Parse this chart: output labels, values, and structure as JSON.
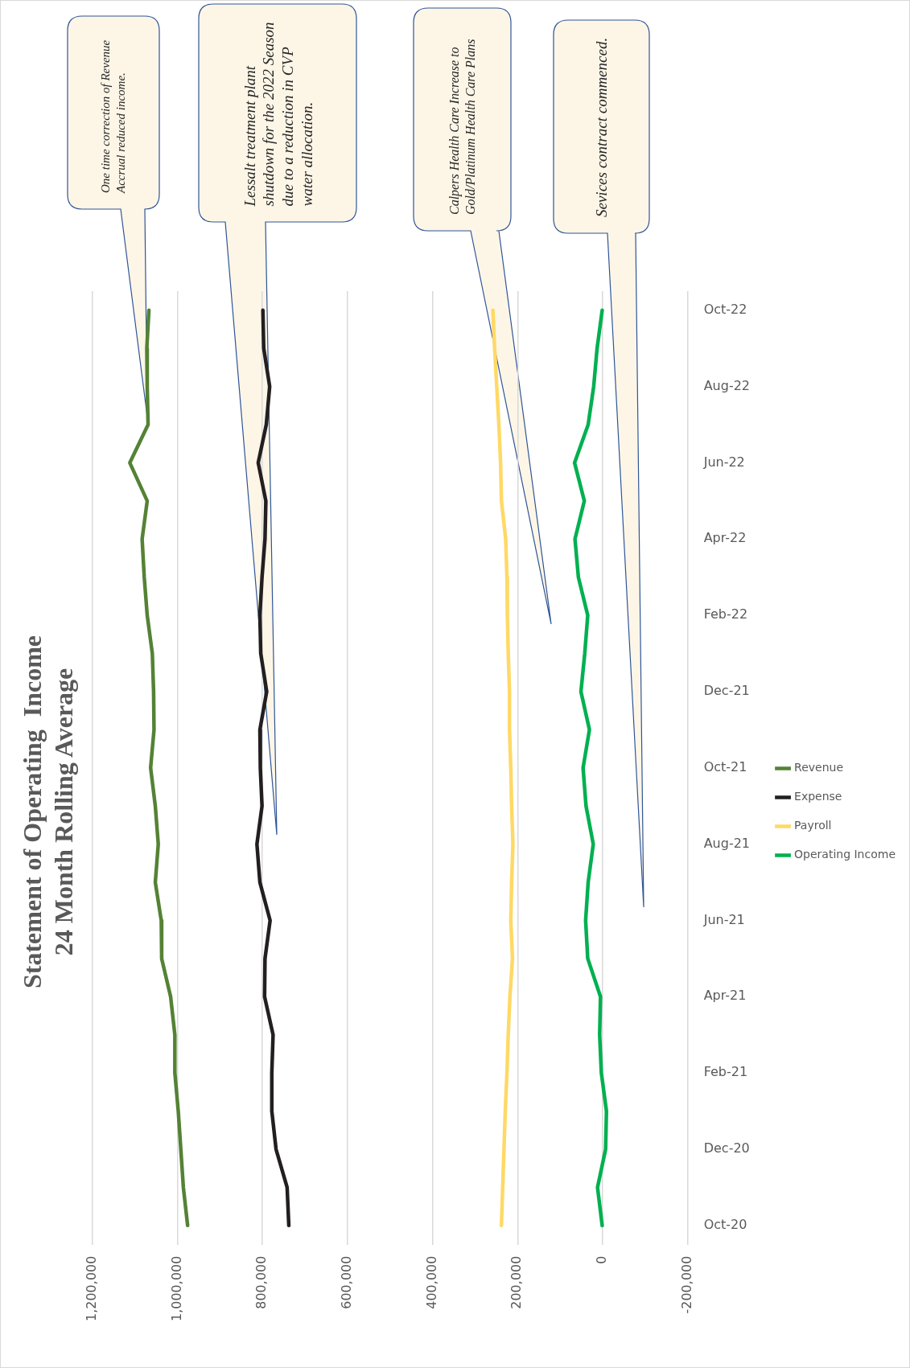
{
  "chart_data": {
    "type": "line",
    "orientation": "horizontal",
    "title": [
      "Statement of Operating  Income",
      "24 Month Rolling Average"
    ],
    "categories": [
      "Oct-22",
      null,
      "Aug-22",
      null,
      "Jun-22",
      null,
      "Apr-22",
      null,
      "Feb-22",
      null,
      "Dec-21",
      null,
      "Oct-21",
      null,
      "Aug-21",
      null,
      "Jun-21",
      null,
      "Apr-21",
      null,
      "Feb-21",
      null,
      "Dec-20",
      null,
      "Oct-20"
    ],
    "series": [
      {
        "name": "Revenue",
        "color": "#548235",
        "values": [
          1067000,
          1072000,
          1071000,
          1069000,
          1112000,
          1071000,
          1083000,
          1078000,
          1071000,
          1059000,
          1056000,
          1055000,
          1063000,
          1052000,
          1045000,
          1052000,
          1038000,
          1037000,
          1016000,
          1006000,
          1006000,
          998000,
          992000,
          986000,
          976000
        ]
      },
      {
        "name": "Expense",
        "color": "#231f20",
        "values": [
          799000,
          797000,
          783000,
          791000,
          810000,
          792000,
          794000,
          801000,
          806000,
          804000,
          790000,
          806000,
          805000,
          801000,
          813000,
          806000,
          782000,
          794000,
          795000,
          775000,
          778000,
          778000,
          768000,
          742000,
          738000
        ]
      },
      {
        "name": "Payroll",
        "color": "#ffd966",
        "values": [
          258000,
          254000,
          249000,
          244000,
          240000,
          238000,
          228000,
          225000,
          224000,
          222000,
          219000,
          219000,
          216000,
          214000,
          211000,
          214000,
          216000,
          212000,
          218000,
          222000,
          225000,
          229000,
          232000,
          235000,
          238000
        ]
      },
      {
        "name": "Operating Income",
        "color": "#00b050",
        "values": [
          1000,
          13000,
          21000,
          34000,
          66000,
          43000,
          65000,
          57000,
          35000,
          42000,
          51000,
          31000,
          46000,
          39000,
          22000,
          34000,
          40000,
          35000,
          5000,
          7000,
          3000,
          -9000,
          -7000,
          12000,
          1000
        ]
      }
    ],
    "xlim": [
      1200000,
      -200000
    ],
    "xticks": [
      {
        "value": 1200000,
        "label": "1,200,000"
      },
      {
        "value": 1000000,
        "label": "1,000,000"
      },
      {
        "value": 800000,
        "label": "800,000"
      },
      {
        "value": 600000,
        "label": "600,000"
      },
      {
        "value": 400000,
        "label": "400,000"
      },
      {
        "value": 200000,
        "label": "200,000"
      },
      0,
      {
        "value": -200000,
        "label": "-200,000"
      }
    ],
    "grid": "x",
    "legend": "right",
    "annotations": [
      "One time correction of Revenue Accrual reduced income.",
      "Lessalt treatment plant shutdown for the 2022 Season due to a reduction in CVP water allocation.",
      "Calpers Health Care Increase to Gold/Platinum Health Care Plans",
      "Sevices contract commenced."
    ]
  }
}
